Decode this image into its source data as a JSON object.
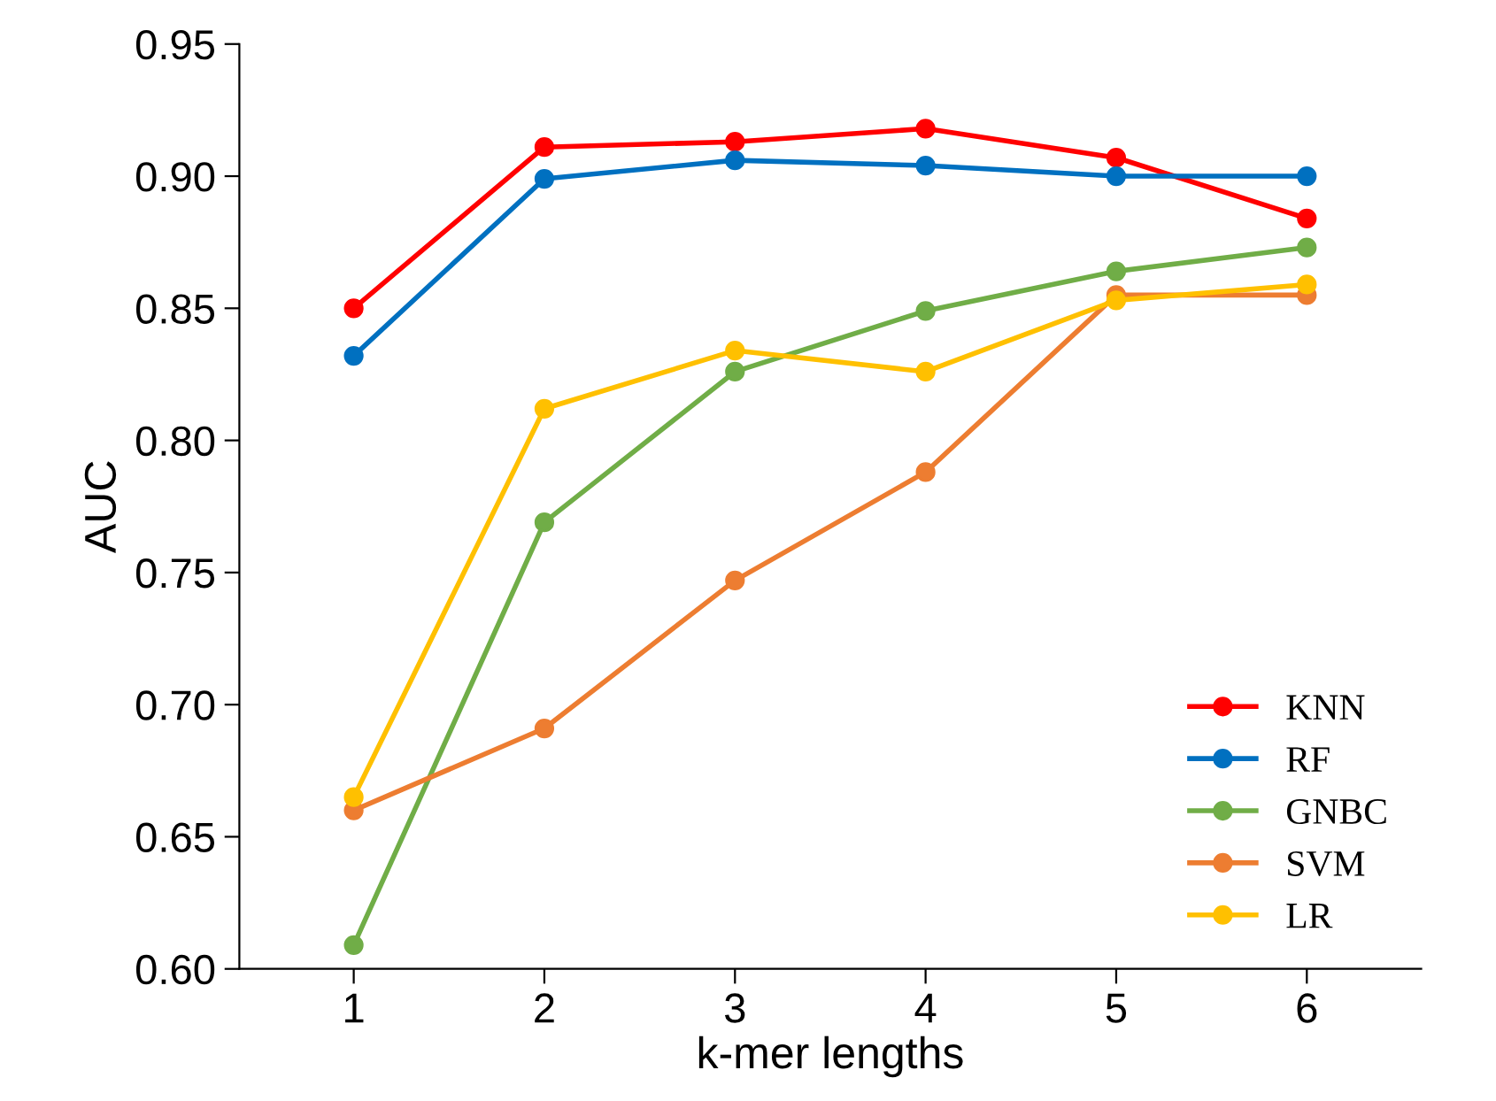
{
  "chart_data": {
    "type": "line",
    "xlabel": "k-mer lengths",
    "ylabel": "AUC",
    "categories": [
      "1",
      "2",
      "3",
      "4",
      "5",
      "6"
    ],
    "series": [
      {
        "name": "KNN",
        "color": "#ff0000",
        "values": [
          0.85,
          0.911,
          0.913,
          0.918,
          0.907,
          0.884
        ]
      },
      {
        "name": "RF",
        "color": "#0070c0",
        "values": [
          0.832,
          0.899,
          0.906,
          0.904,
          0.9,
          0.9
        ]
      },
      {
        "name": "GNBC",
        "color": "#70ad47",
        "values": [
          0.609,
          0.769,
          0.826,
          0.849,
          0.864,
          0.873
        ]
      },
      {
        "name": "SVM",
        "color": "#ed7d31",
        "values": [
          0.66,
          0.691,
          0.747,
          0.788,
          0.855,
          0.855
        ]
      },
      {
        "name": "LR",
        "color": "#ffc000",
        "values": [
          0.665,
          0.812,
          0.834,
          0.826,
          0.853,
          0.859
        ]
      }
    ],
    "ylim": [
      0.6,
      0.95
    ],
    "yticks": [
      {
        "value": 0.6,
        "label": "0.60"
      },
      {
        "value": 0.65,
        "label": "0.65"
      },
      {
        "value": 0.7,
        "label": "0.70"
      },
      {
        "value": 0.75,
        "label": "0.75"
      },
      {
        "value": 0.8,
        "label": "0.80"
      },
      {
        "value": 0.85,
        "label": "0.85"
      },
      {
        "value": 0.9,
        "label": "0.90"
      },
      {
        "value": 0.95,
        "label": "0.95"
      }
    ],
    "marker": "circle",
    "line_style": "solid",
    "grid": false,
    "legend": "bottom right"
  }
}
